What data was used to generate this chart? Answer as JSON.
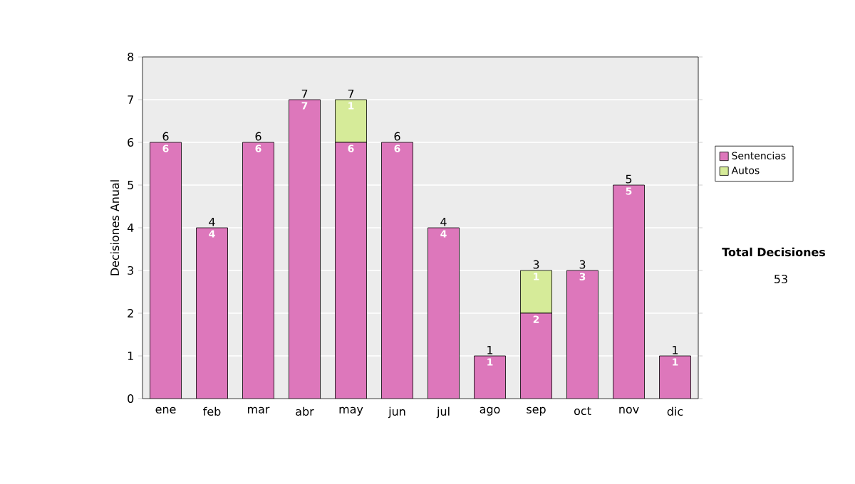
{
  "chart_data": {
    "type": "bar",
    "stacked": true,
    "ylabel": "Decisiones Anual",
    "categories": [
      "ene",
      "feb",
      "mar",
      "abr",
      "may",
      "jun",
      "jul",
      "ago",
      "sep",
      "oct",
      "nov",
      "dic"
    ],
    "series": [
      {
        "name": "Sentencias",
        "color": "#dd77bb",
        "values": [
          6,
          4,
          6,
          7,
          6,
          6,
          4,
          1,
          2,
          3,
          5,
          1
        ],
        "value_labels": [
          "6",
          "4",
          "6",
          "7",
          "6",
          "6",
          "4",
          "1",
          "2",
          "3",
          "5",
          "1"
        ]
      },
      {
        "name": "Autos",
        "color": "#d6eb99",
        "values": [
          0,
          0,
          0,
          0,
          1,
          0,
          0,
          0,
          1,
          0,
          0,
          0
        ],
        "value_labels": [
          null,
          null,
          null,
          null,
          "1",
          null,
          null,
          null,
          "1",
          null,
          null,
          null
        ]
      }
    ],
    "totals": [
      "6",
      "4",
      "6",
      "7",
      "7",
      "6",
      "4",
      "1",
      "3",
      "3",
      "5",
      "1"
    ],
    "ylim": [
      0,
      8
    ],
    "yticks": [
      0,
      1,
      2,
      3,
      4,
      5,
      6,
      7,
      8
    ],
    "grid": "y",
    "legend": "right",
    "annotations": [
      "**Total Decisiones**",
      "53"
    ]
  }
}
